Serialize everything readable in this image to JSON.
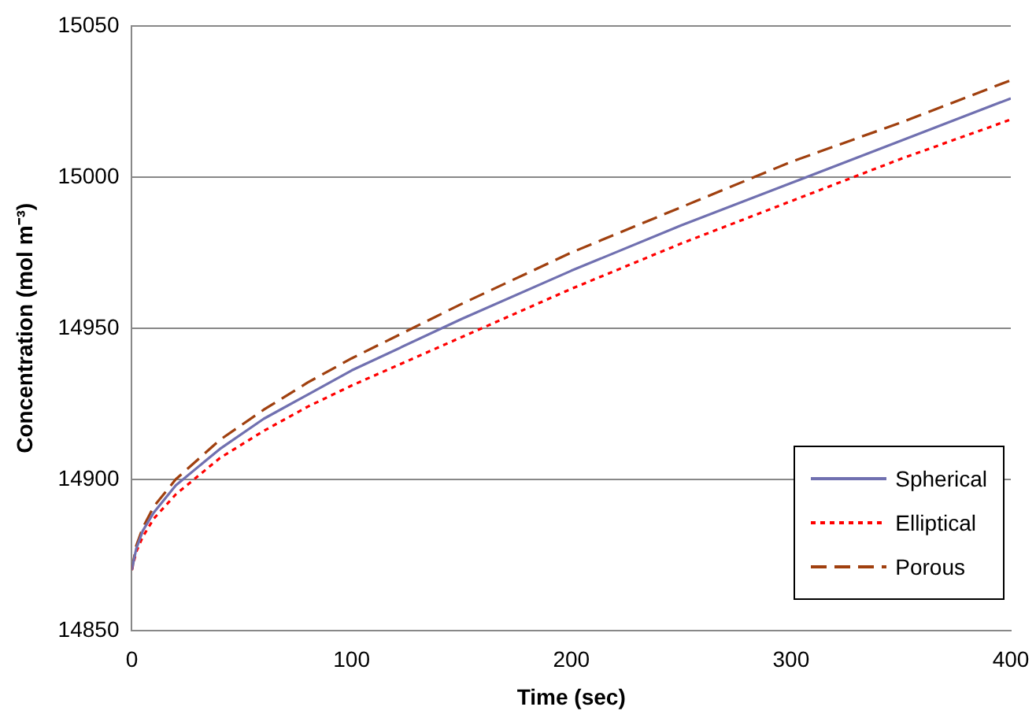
{
  "chart_data": {
    "type": "line",
    "xlabel": "Time (sec)",
    "ylabel": "Concentration (mol m⁻³)",
    "x": [
      0,
      2,
      5,
      10,
      20,
      40,
      60,
      80,
      100,
      150,
      200,
      250,
      300,
      350,
      400
    ],
    "xlim": [
      0,
      400
    ],
    "xticks": [
      0,
      100,
      200,
      300,
      400
    ],
    "ylim": [
      14850,
      15050
    ],
    "yticks": [
      14850,
      14900,
      14950,
      15000,
      15050
    ],
    "grid": "y",
    "legend": "bottom right",
    "marker": "none",
    "series": [
      {
        "name": "Spherical",
        "color": "#7070b0",
        "line_style": "solid",
        "values": [
          14870,
          14877,
          14883,
          14889,
          14898,
          14910,
          14920,
          14928,
          14936,
          14953,
          14969,
          14984,
          14998,
          15012,
          15026
        ]
      },
      {
        "name": "Elliptical",
        "color": "#ff0000",
        "line_style": "dotted",
        "values": [
          14870,
          14876,
          14881,
          14887,
          14895,
          14907,
          14916,
          14924,
          14931,
          14947,
          14963,
          14978,
          14992,
          15006,
          15019
        ]
      },
      {
        "name": "Porous",
        "color": "#a0400f",
        "line_style": "dashed",
        "values": [
          14870,
          14878,
          14884,
          14891,
          14900,
          14913,
          14923,
          14932,
          14940,
          14958,
          14975,
          14990,
          15005,
          15018,
          15032
        ]
      }
    ]
  }
}
